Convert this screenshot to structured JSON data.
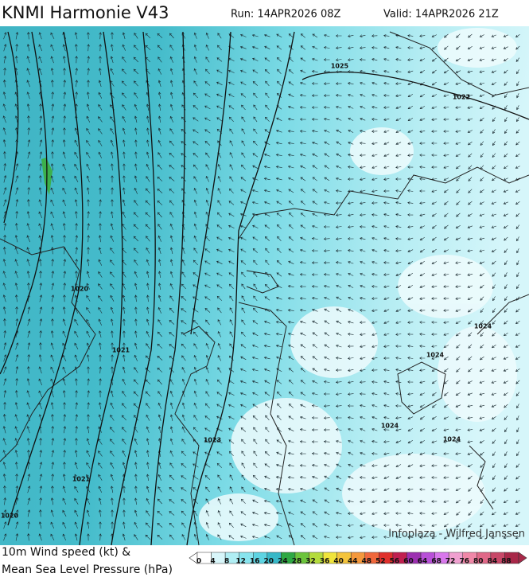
{
  "header": {
    "title": "KNMI Harmonie V43",
    "run": "Run: 14APR2026 08Z",
    "valid": "Valid: 14APR2026 21Z"
  },
  "map": {
    "isobar_labels": [
      "1025",
      "1022",
      "1020",
      "1021",
      "1024",
      "1024",
      "1024",
      "1023",
      "1024",
      "1021",
      "1020"
    ],
    "credit": "Infoplaza - Wilfred Janssen"
  },
  "legend": {
    "title_lines": [
      "10m Wind speed (kt) &",
      "Mean Sea Level Pressure (hPa)"
    ],
    "scale": [
      0,
      4,
      8,
      12,
      16,
      20,
      24,
      28,
      32,
      36,
      40,
      44,
      48,
      52,
      56,
      60,
      64,
      68,
      72,
      76,
      80,
      84,
      88
    ],
    "colors": [
      "#ffffff",
      "#d8f6fa",
      "#b0eef4",
      "#88e4ee",
      "#5ed4e2",
      "#38b8c8",
      "#2ea843",
      "#6cc43c",
      "#b4dc3c",
      "#f0e43c",
      "#f4c43c",
      "#f4983c",
      "#f0683c",
      "#e0302c",
      "#c02050",
      "#9c30b0",
      "#b850d8",
      "#d878ec",
      "#f0a0d0",
      "#f088a8",
      "#e06888",
      "#c84868",
      "#a82848"
    ]
  }
}
